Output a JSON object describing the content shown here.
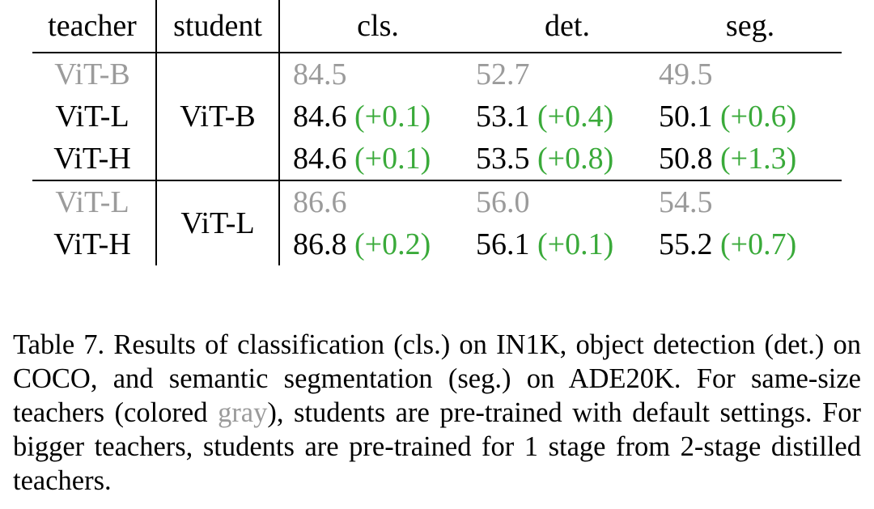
{
  "table": {
    "headers": {
      "teacher": "teacher",
      "student": "student",
      "cls": "cls.",
      "det": "det.",
      "seg": "seg."
    },
    "groups": [
      {
        "student": "ViT-B",
        "rows": [
          {
            "teacher": "ViT-B",
            "baseline": true,
            "cls": "84.5",
            "cls_delta": "",
            "det": "52.7",
            "det_delta": "",
            "seg": "49.5",
            "seg_delta": ""
          },
          {
            "teacher": "ViT-L",
            "baseline": false,
            "cls": "84.6",
            "cls_delta": "(+0.1)",
            "det": "53.1",
            "det_delta": "(+0.4)",
            "seg": "50.1",
            "seg_delta": "(+0.6)"
          },
          {
            "teacher": "ViT-H",
            "baseline": false,
            "cls": "84.6",
            "cls_delta": "(+0.1)",
            "det": "53.5",
            "det_delta": "(+0.8)",
            "seg": "50.8",
            "seg_delta": "(+1.3)"
          }
        ]
      },
      {
        "student": "ViT-L",
        "rows": [
          {
            "teacher": "ViT-L",
            "baseline": true,
            "cls": "86.6",
            "cls_delta": "",
            "det": "56.0",
            "det_delta": "",
            "seg": "54.5",
            "seg_delta": ""
          },
          {
            "teacher": "ViT-H",
            "baseline": false,
            "cls": "86.8",
            "cls_delta": "(+0.2)",
            "det": "56.1",
            "det_delta": "(+0.1)",
            "seg": "55.2",
            "seg_delta": "(+0.7)"
          }
        ]
      }
    ]
  },
  "caption": {
    "before_gray": "Table 7. Results of classification (cls.) on IN1K, object detection (det.) on COCO, and semantic segmentation (seg.) on ADE20K. For same-size teachers (colored ",
    "gray_word": "gray",
    "after_gray": "), students are pre-trained with default settings. For bigger teachers, students are pre-trained for 1 stage from 2-stage distilled teachers."
  },
  "colors": {
    "baseline_gray": "#9b9b9b",
    "delta_green": "#3aaa3a",
    "rule": "#000000"
  }
}
